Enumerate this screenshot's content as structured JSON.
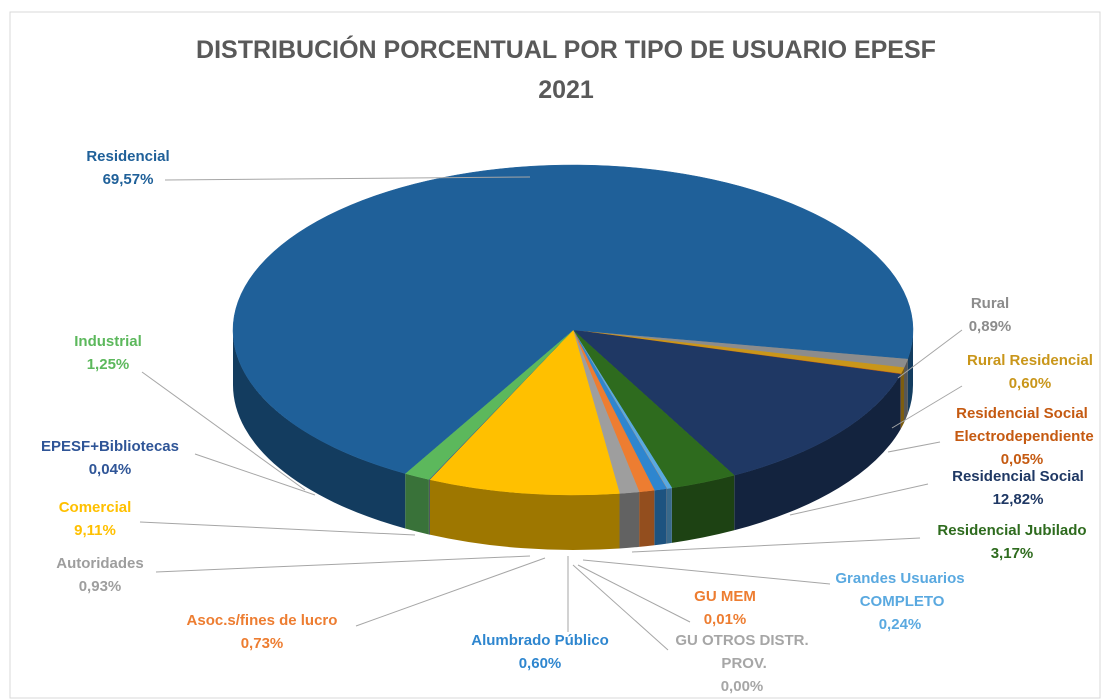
{
  "chart_data": {
    "type": "pie3d",
    "title_lines": [
      "DISTRIBUCIÓN PORCENTUAL POR TIPO DE USUARIO EPESF",
      "2021"
    ],
    "categories": [
      "Rural",
      "Rural Residencial",
      "Residencial Social Electrodependiente",
      "Residencial Social",
      "Residencial Jubilado",
      "Grandes Usuarios COMPLETO",
      "GU OTROS DISTR. PROV.",
      "GU MEM",
      "Alumbrado Público",
      "Asoc.s/fines de lucro",
      "Autoridades",
      "Comercial",
      "EPESF+Bibliotecas",
      "Industrial",
      "Residencial"
    ],
    "values": [
      0.89,
      0.6,
      0.05,
      12.82,
      3.17,
      0.24,
      0.0,
      0.01,
      0.6,
      0.73,
      0.93,
      9.11,
      0.04,
      1.25,
      69.57
    ],
    "value_labels": [
      "0,89%",
      "0,60%",
      "0,05%",
      "12,82%",
      "3,17%",
      "0,24%",
      "0,00%",
      "0,01%",
      "0,60%",
      "0,73%",
      "0,93%",
      "9,11%",
      "0,04%",
      "1,25%",
      "69,57%"
    ],
    "colors": [
      "#8c8c8c",
      "#c9961a",
      "#c55a11",
      "#1f3864",
      "#2e6b1e",
      "#5aa9e0",
      "#a6a6a6",
      "#ed7d31",
      "#2e86cf",
      "#ed7d31",
      "#9e9e9e",
      "#ffc000",
      "#2f5597",
      "#5cb85c",
      "#1f6099"
    ]
  }
}
